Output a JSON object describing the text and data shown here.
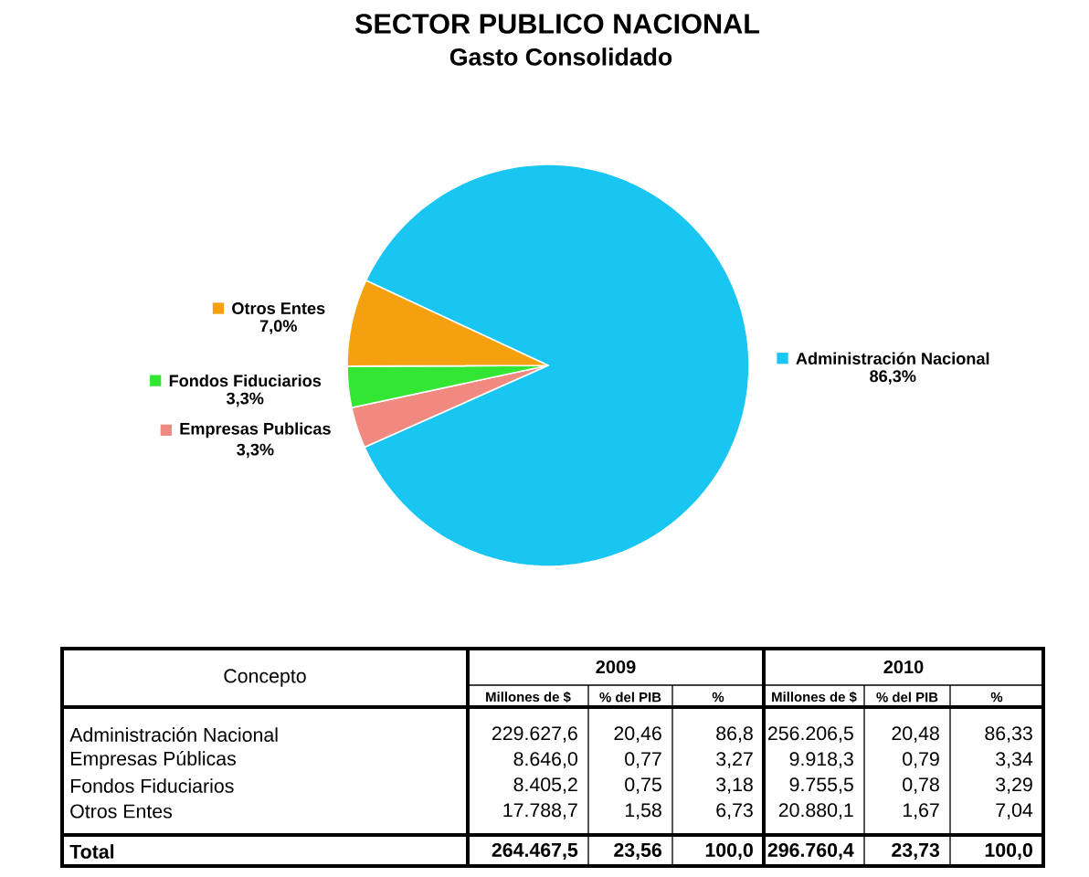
{
  "chart_data": [
    {
      "type": "pie",
      "title": "SECTOR PUBLICO NACIONAL",
      "subtitle": "Gasto Consolidado",
      "categories": [
        "Administración Nacional",
        "Empresas Publicas",
        "Fondos Fiduciarios",
        "Otros Entes"
      ],
      "values": [
        86.3,
        3.3,
        3.3,
        7.0
      ],
      "colors": [
        "#19c6f2",
        "#f08a80",
        "#33e633",
        "#f5a10f"
      ],
      "value_labels": [
        "86,3%",
        "3,3%",
        "3,3%",
        "7,0%"
      ],
      "legend": "bottom right"
    },
    {
      "type": "other",
      "categories": [
        "Administración Nacional",
        "Empresas Públicas",
        "Fondos Fiduciarios",
        "Otros Entes",
        "Total"
      ],
      "annotations": [
        "Concepto",
        "2009",
        "2010"
      ],
      "series": [
        {
          "name": "Millones de $",
          "values": [
            229627.6,
            8646.0,
            8405.2,
            17788.7,
            264467.5
          ],
          "value_labels": [
            "229.627,6",
            "8.646,0",
            "8.405,2",
            "17.788,7",
            "264.467,5"
          ]
        },
        {
          "name": "% del PIB",
          "values": [
            20.46,
            0.77,
            0.75,
            1.58,
            23.56
          ],
          "value_labels": [
            "20,46",
            "0,77",
            "0,75",
            "1,58",
            "23,56"
          ]
        },
        {
          "name": "%",
          "values": [
            86.8,
            3.27,
            3.18,
            6.73,
            100.0
          ],
          "value_labels": [
            "86,8",
            "3,27",
            "3,18",
            "6,73",
            "100,0"
          ]
        },
        {
          "name": "Millones de $",
          "values": [
            256206.5,
            9918.3,
            9755.5,
            20880.1,
            296760.4
          ],
          "value_labels": [
            "256.206,5",
            "9.918,3",
            "9.755,5",
            "20.880,1",
            "296.760,4"
          ]
        },
        {
          "name": "% del PIB",
          "values": [
            20.48,
            0.79,
            0.78,
            1.67,
            23.73
          ],
          "value_labels": [
            "20,48",
            "0,79",
            "0,78",
            "1,67",
            "23,73"
          ]
        },
        {
          "name": "%",
          "values": [
            86.33,
            3.34,
            3.29,
            7.04,
            100.0
          ],
          "value_labels": [
            "86,33",
            "3,34",
            "3,29",
            "7,04",
            "100,0"
          ]
        }
      ]
    }
  ]
}
